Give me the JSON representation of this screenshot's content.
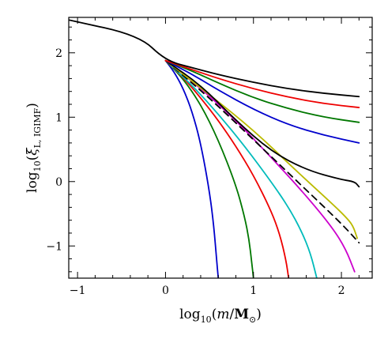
{
  "chart_data": {
    "type": "line",
    "title": "",
    "xlabel": {
      "prefix": "log",
      "sub": "10",
      "open": "(",
      "var": "m",
      "slash": "/",
      "unit": "M",
      "unit_sub": "⊙",
      "close": ")"
    },
    "ylabel": {
      "prefix": "log",
      "sub": "10",
      "open": "(",
      "var": "ξ",
      "var_sub": "L, IGIMF",
      "close": ")"
    },
    "xlim": [
      -1.1,
      2.35
    ],
    "ylim": [
      -1.5,
      2.55
    ],
    "x_ticks": [
      {
        "value": -1,
        "label": "−1"
      },
      {
        "value": 0,
        "label": "0"
      },
      {
        "value": 1,
        "label": "1"
      },
      {
        "value": 2,
        "label": "2"
      }
    ],
    "y_ticks": [
      {
        "value": -1,
        "label": "−1"
      },
      {
        "value": 0,
        "label": "0"
      },
      {
        "value": 1,
        "label": "1"
      },
      {
        "value": 2,
        "label": "2"
      }
    ],
    "grid": false,
    "legend": "none",
    "series": [
      {
        "color": "#0000cc",
        "dash": "solid",
        "x": [
          0.0,
          0.1,
          0.2,
          0.3,
          0.4,
          0.5,
          0.55,
          0.58,
          0.6
        ],
        "y": [
          1.88,
          1.7,
          1.45,
          1.1,
          0.6,
          -0.15,
          -0.7,
          -1.2,
          -1.5
        ]
      },
      {
        "color": "#007700",
        "dash": "solid",
        "x": [
          0.0,
          0.2,
          0.4,
          0.6,
          0.8,
          0.9,
          0.95,
          0.98,
          1.0
        ],
        "y": [
          1.88,
          1.6,
          1.2,
          0.65,
          -0.05,
          -0.55,
          -0.9,
          -1.25,
          -1.5
        ]
      },
      {
        "color": "#ee0000",
        "dash": "solid",
        "x": [
          0.0,
          0.2,
          0.4,
          0.6,
          0.8,
          1.0,
          1.2,
          1.3,
          1.37,
          1.4
        ],
        "y": [
          1.88,
          1.62,
          1.3,
          0.95,
          0.55,
          0.1,
          -0.45,
          -0.82,
          -1.22,
          -1.5
        ]
      },
      {
        "color": "#00bbbb",
        "dash": "solid",
        "x": [
          0.0,
          0.3,
          0.6,
          0.9,
          1.2,
          1.4,
          1.55,
          1.65,
          1.72
        ],
        "y": [
          1.88,
          1.5,
          1.05,
          0.55,
          0.0,
          -0.4,
          -0.78,
          -1.12,
          -1.5
        ]
      },
      {
        "color": "#cc00cc",
        "dash": "solid",
        "x": [
          0.0,
          0.4,
          0.8,
          1.2,
          1.6,
          1.9,
          2.05,
          2.15
        ],
        "y": [
          1.88,
          1.45,
          0.95,
          0.38,
          -0.22,
          -0.72,
          -1.05,
          -1.4
        ]
      },
      {
        "color": "#000000",
        "dash": "dashed",
        "x": [
          0.0,
          0.5,
          1.0,
          1.5,
          2.0,
          2.2
        ],
        "y": [
          1.88,
          1.3,
          0.65,
          0.0,
          -0.65,
          -0.95
        ]
      },
      {
        "color": "#bbbb00",
        "dash": "solid",
        "x": [
          0.0,
          0.5,
          1.0,
          1.5,
          1.9,
          2.05,
          2.13,
          2.18
        ],
        "y": [
          1.88,
          1.35,
          0.8,
          0.15,
          -0.35,
          -0.55,
          -0.68,
          -0.88
        ]
      },
      {
        "color": "#000000",
        "dash": "solid",
        "x": [
          0.0,
          0.4,
          0.8,
          1.2,
          1.6,
          2.0,
          2.15,
          2.2
        ],
        "y": [
          1.88,
          1.5,
          0.95,
          0.47,
          0.18,
          0.03,
          0.0,
          -0.08
        ]
      },
      {
        "color": "#0000cc",
        "dash": "solid",
        "x": [
          0.0,
          0.3,
          0.6,
          1.0,
          1.4,
          1.8,
          2.2
        ],
        "y": [
          1.88,
          1.67,
          1.42,
          1.12,
          0.88,
          0.72,
          0.6
        ]
      },
      {
        "color": "#007700",
        "dash": "solid",
        "x": [
          0.0,
          0.3,
          0.6,
          1.0,
          1.4,
          1.8,
          2.2
        ],
        "y": [
          1.88,
          1.72,
          1.53,
          1.3,
          1.13,
          1.0,
          0.92
        ]
      },
      {
        "color": "#ee0000",
        "dash": "solid",
        "x": [
          0.0,
          0.3,
          0.6,
          1.0,
          1.4,
          1.8,
          2.2
        ],
        "y": [
          1.88,
          1.74,
          1.6,
          1.44,
          1.31,
          1.21,
          1.15
        ]
      },
      {
        "color": "#000000",
        "dash": "solid",
        "x": [
          -1.1,
          -0.3,
          0.0,
          0.3,
          0.6,
          1.0,
          1.4,
          1.8,
          2.2
        ],
        "y": [
          2.51,
          2.27,
          1.88,
          1.77,
          1.66,
          1.54,
          1.44,
          1.37,
          1.32
        ]
      }
    ]
  }
}
